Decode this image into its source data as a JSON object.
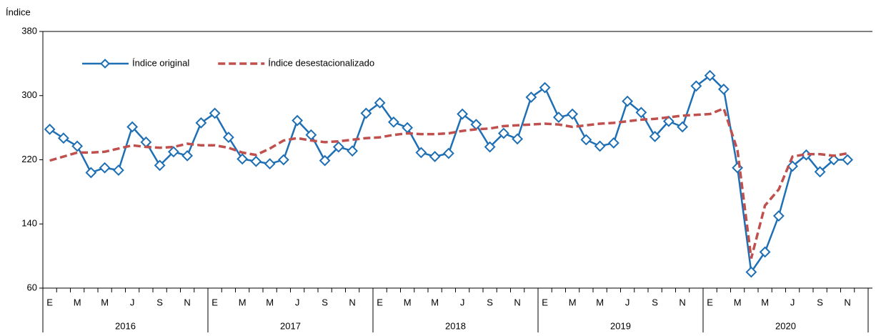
{
  "chart_data": {
    "type": "line",
    "y_label": "Índice",
    "categories": [
      "E",
      null,
      "M",
      null,
      "M",
      null,
      "J",
      null,
      "S",
      null,
      "N",
      null,
      "E",
      null,
      "M",
      null,
      "M",
      null,
      "J",
      null,
      "S",
      null,
      "N",
      null,
      "E",
      null,
      "M",
      null,
      "M",
      null,
      "J",
      null,
      "S",
      null,
      "N",
      null,
      "E",
      null,
      "M",
      null,
      "M",
      null,
      "J",
      null,
      "S",
      null,
      "N",
      null,
      "E",
      null,
      "M",
      null,
      "M",
      null,
      "J",
      null,
      "S",
      null,
      "N"
    ],
    "years": [
      "2016",
      "2017",
      "2018",
      "2019",
      "2020"
    ],
    "series": [
      {
        "name": "Índice original",
        "color": "#1f6fb4",
        "marker": "diamond",
        "dashed": false,
        "values": [
          258,
          247,
          237,
          204,
          210,
          207,
          261,
          242,
          213,
          230,
          225,
          266,
          278,
          248,
          221,
          218,
          215,
          220,
          269,
          251,
          219,
          236,
          231,
          278,
          291,
          267,
          260,
          229,
          224,
          228,
          277,
          264,
          236,
          253,
          246,
          298,
          310,
          273,
          277,
          245,
          237,
          241,
          293,
          279,
          249,
          268,
          261,
          312,
          325,
          308,
          210,
          80,
          105,
          150,
          212,
          226,
          205,
          220,
          220
        ]
      },
      {
        "name": "Índice desestacionalizado",
        "color": "#c0504d",
        "marker": null,
        "dashed": true,
        "values": [
          219,
          224,
          229,
          229,
          230,
          234,
          238,
          236,
          235,
          236,
          240,
          238,
          238,
          235,
          229,
          226,
          234,
          244,
          247,
          244,
          242,
          243,
          245,
          247,
          248,
          251,
          253,
          252,
          252,
          253,
          256,
          258,
          259,
          262,
          263,
          264,
          265,
          264,
          261,
          263,
          265,
          266,
          268,
          270,
          271,
          273,
          275,
          276,
          277,
          284,
          232,
          97,
          163,
          183,
          224,
          227,
          227,
          225,
          228
        ]
      }
    ],
    "ylim": [
      60,
      380
    ],
    "yticks": [
      60,
      140,
      220,
      300,
      380
    ],
    "legend": "top-left",
    "grid": false
  }
}
